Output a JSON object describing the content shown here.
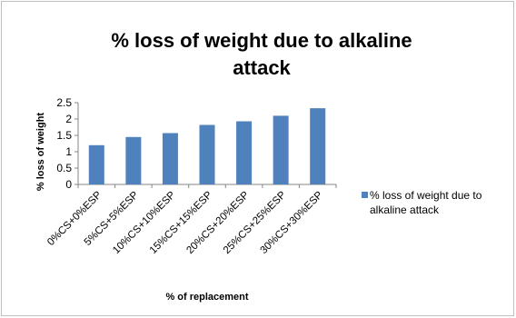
{
  "chart_data": {
    "type": "bar",
    "title_lines": [
      "% loss of weight due to alkaline",
      "attack"
    ],
    "xlabel": "% of replacement",
    "ylabel": "% loss of weight",
    "categories": [
      "0%CS+0%ESP",
      "5%CS+5%ESP",
      "10%CS+10%ESP",
      "15%CS+15%ESP",
      "20%CS+20%ESP",
      "25%CS+25%ESP",
      "30%CS+30%ESP"
    ],
    "series": [
      {
        "name": "% loss of weight due to alkaline attack",
        "legend_lines": [
          "% loss of weight due to",
          "alkaline attack"
        ],
        "color": "#4f81bd",
        "values": [
          1.2,
          1.45,
          1.57,
          1.82,
          1.93,
          2.1,
          2.33
        ]
      }
    ],
    "ylim": [
      0,
      2.5
    ],
    "yticks": [
      "0",
      "0.5",
      "1",
      "1.5",
      "2",
      "2.5"
    ],
    "grid": false,
    "legend_position": "right"
  }
}
